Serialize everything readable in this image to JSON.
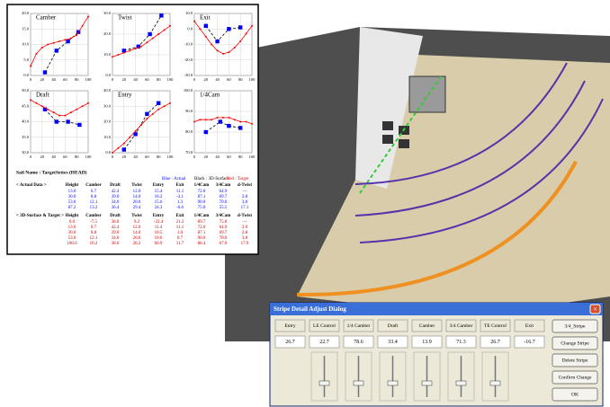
{
  "chart_data": [
    {
      "type": "line",
      "title": "Camber",
      "xlim": [
        0,
        100
      ],
      "xticks": [
        0,
        20,
        40,
        60,
        80,
        100
      ],
      "ylim": [
        0,
        20
      ],
      "yticks": [
        {
          "value": 0,
          "label": "0.0"
        },
        {
          "value": 5,
          "label": "5.0"
        },
        {
          "value": 10,
          "label": "10.0"
        },
        {
          "value": 15,
          "label": "15.0"
        },
        {
          "value": 20,
          "label": "20.0"
        }
      ],
      "grid": true,
      "series": [
        {
          "color": "#0000ff",
          "line_color": "#000000",
          "line_style": "dashed",
          "marker": "square",
          "x": [
            25,
            45,
            65,
            83
          ],
          "values": [
            1,
            8,
            11,
            14
          ]
        },
        {
          "color": "#ff0000",
          "line_color": "#ff0000",
          "line_style": "solid",
          "marker": "dot",
          "x": [
            0,
            10,
            20,
            30,
            40,
            50,
            60,
            70,
            80,
            90,
            100
          ],
          "values": [
            3,
            7,
            9,
            10,
            10.5,
            11,
            11.5,
            12,
            13,
            16,
            19
          ]
        }
      ]
    },
    {
      "type": "line",
      "title": "Twist",
      "xlim": [
        0,
        100
      ],
      "xticks": [
        0,
        20,
        40,
        60,
        80,
        100
      ],
      "ylim": [
        0,
        30
      ],
      "yticks": [
        {
          "value": 0,
          "label": "0.0"
        },
        {
          "value": 10,
          "label": "10.0"
        },
        {
          "value": 20,
          "label": "20.0"
        },
        {
          "value": 30,
          "label": "30.0"
        }
      ],
      "grid": true,
      "series": [
        {
          "color": "#0000ff",
          "line_color": "#000000",
          "line_style": "dashed",
          "marker": "square",
          "x": [
            20,
            45,
            65,
            85
          ],
          "values": [
            12,
            14,
            20,
            29
          ]
        },
        {
          "color": "#ff0000",
          "line_color": "#ff0000",
          "line_style": "solid",
          "marker": "dot",
          "x": [
            0,
            10,
            20,
            30,
            40,
            50,
            60,
            70,
            80,
            90,
            100
          ],
          "values": [
            9,
            10,
            11,
            12,
            13,
            14,
            16,
            18,
            20,
            22,
            24
          ]
        }
      ]
    },
    {
      "type": "line",
      "title": "Exit",
      "xlim": [
        0,
        100
      ],
      "xticks": [
        0,
        20,
        40,
        60,
        80,
        100
      ],
      "ylim": [
        -30,
        10
      ],
      "yticks": [
        {
          "value": -30,
          "label": "-30.0"
        },
        {
          "value": -20,
          "label": "-20.0"
        },
        {
          "value": -10,
          "label": "-10.0"
        },
        {
          "value": 0,
          "label": "0.0"
        },
        {
          "value": 10,
          "label": "10.0"
        }
      ],
      "grid": true,
      "series": [
        {
          "color": "#0000ff",
          "line_color": "#000000",
          "line_style": "dashed",
          "marker": "square",
          "x": [
            20,
            40,
            60,
            80
          ],
          "values": [
            2,
            -8,
            0,
            1
          ]
        },
        {
          "color": "#ff0000",
          "line_color": "#ff0000",
          "line_style": "solid",
          "marker": "dot",
          "x": [
            0,
            10,
            20,
            30,
            40,
            50,
            60,
            70,
            80,
            90,
            100
          ],
          "values": [
            5,
            0,
            -5,
            -10,
            -14,
            -16,
            -15,
            -12,
            -8,
            -3,
            2
          ]
        }
      ]
    },
    {
      "type": "line",
      "title": "Draft",
      "xlim": [
        0,
        100
      ],
      "xticks": [
        0,
        20,
        40,
        60,
        80,
        100
      ],
      "ylim": [
        30,
        50
      ],
      "yticks": [
        {
          "value": 30,
          "label": "30.0"
        },
        {
          "value": 35,
          "label": "35.0"
        },
        {
          "value": 40,
          "label": "40.0"
        },
        {
          "value": 45,
          "label": "45.0"
        },
        {
          "value": 50,
          "label": "50.0"
        }
      ],
      "grid": true,
      "series": [
        {
          "color": "#0000ff",
          "line_color": "#000000",
          "line_style": "dashed",
          "marker": "square",
          "x": [
            25,
            45,
            65,
            85
          ],
          "values": [
            44,
            40,
            40,
            39
          ]
        },
        {
          "color": "#ff0000",
          "line_color": "#ff0000",
          "line_style": "solid",
          "marker": "dot",
          "x": [
            0,
            10,
            20,
            30,
            40,
            50,
            60,
            70,
            80,
            90,
            100
          ],
          "values": [
            47,
            46,
            45,
            44,
            43,
            42,
            42,
            43,
            44,
            45,
            46
          ]
        }
      ]
    },
    {
      "type": "line",
      "title": "Entry",
      "xlim": [
        0,
        100
      ],
      "xticks": [
        0,
        20,
        40,
        60,
        80,
        100
      ],
      "ylim": [
        0,
        40
      ],
      "yticks": [
        {
          "value": 0,
          "label": "0.0"
        },
        {
          "value": 10,
          "label": "10.0"
        },
        {
          "value": 20,
          "label": "20.0"
        },
        {
          "value": 30,
          "label": "30.0"
        },
        {
          "value": 40,
          "label": "40.0"
        }
      ],
      "grid": true,
      "series": [
        {
          "color": "#0000ff",
          "line_color": "#000000",
          "line_style": "dashed",
          "marker": "square",
          "x": [
            20,
            40,
            60,
            80
          ],
          "values": [
            2,
            12,
            25,
            32
          ]
        },
        {
          "color": "#ff0000",
          "line_color": "#ff0000",
          "line_style": "solid",
          "marker": "dot",
          "x": [
            0,
            10,
            20,
            30,
            40,
            50,
            60,
            70,
            80,
            90,
            100
          ],
          "values": [
            0,
            3,
            6,
            10,
            14,
            18,
            22,
            25,
            28,
            30,
            32
          ]
        }
      ]
    },
    {
      "type": "line",
      "title": "1/4Cam",
      "xlim": [
        0,
        100
      ],
      "xticks": [
        0,
        20,
        40,
        60,
        80,
        100
      ],
      "ylim": [
        70,
        100
      ],
      "yticks": [
        {
          "value": 70,
          "label": "70.0"
        },
        {
          "value": 80,
          "label": "80.0"
        },
        {
          "value": 90,
          "label": "90.0"
        },
        {
          "value": 100,
          "label": "100.0"
        }
      ],
      "grid": true,
      "series": [
        {
          "color": "#0000ff",
          "line_color": "#000000",
          "line_style": "dashed",
          "marker": "square",
          "x": [
            20,
            45,
            60,
            80
          ],
          "values": [
            80,
            85,
            83,
            82
          ]
        },
        {
          "color": "#ff0000",
          "line_color": "#ff0000",
          "line_style": "solid",
          "marker": "dot",
          "x": [
            0,
            10,
            20,
            30,
            40,
            50,
            60,
            70,
            80,
            90,
            100
          ],
          "values": [
            85,
            86,
            86,
            86,
            87,
            87,
            87,
            86,
            85,
            85,
            84
          ]
        }
      ]
    }
  ],
  "table": {
    "sail_name": "Sail Name : TargetSettes (HEAD)",
    "legend": [
      {
        "text": "Blue : Actual",
        "color": "#0000ff"
      },
      {
        "text": "Black : 3D-Surface",
        "color": "#000000"
      },
      {
        "text": "Red : Target",
        "color": "#ff0000"
      }
    ],
    "actual_label": "< Actual Data >",
    "surface_label": "< 3D-Surface & Target >",
    "columns": [
      "Height",
      "Camber",
      "Draft",
      "Twist",
      "Entry",
      "Exit",
      "1/4Cam",
      "3/4Cam",
      "d-Twist"
    ],
    "actual_color": "#0000ff",
    "surface_color": "#cc0000",
    "actual_rows": [
      [
        "13.0",
        "6.7",
        "42.4",
        "12.0",
        "15.4",
        "11.1",
        "72.0",
        "64.9",
        "—"
      ],
      [
        "30.0",
        "8.8",
        "39.0",
        "14.0",
        "16.2",
        "-3.1",
        "87.1",
        "69.7",
        "2.8"
      ],
      [
        "53.0",
        "12.1",
        "34.0",
        "20.0",
        "15.6",
        "1.3",
        "90.0",
        "70.0",
        "3.8"
      ],
      [
        "87.2",
        "13.2",
        "36.4",
        "29.4",
        "24.3",
        "-6.6",
        "75.0",
        "55.5",
        "17.1"
      ]
    ],
    "surface_rows": [
      [
        "0.0",
        "-7.5",
        "38.0",
        "9.2",
        "-22.4",
        "21.2",
        "89.7",
        "75.8",
        "—"
      ],
      [
        "13.0",
        "0.7",
        "42.4",
        "12.0",
        "11.4",
        "11.1",
        "72.0",
        "64.9",
        "2.0"
      ],
      [
        "30.0",
        "8.8",
        "39.0",
        "14.0",
        "10.5",
        "1.0",
        "87.1",
        "69.7",
        "2.8"
      ],
      [
        "53.0",
        "12.1",
        "34.0",
        "20.0",
        "10.6",
        "0.7",
        "90.0",
        "70.0",
        "3.8"
      ],
      [
        "100.0",
        "10.2",
        "38.0",
        "28.2",
        "60.9",
        "11.7",
        "88.4",
        "67.0",
        "17.9"
      ]
    ]
  },
  "dialog": {
    "title": "Stripe Detail Adjust Dialog",
    "fields": [
      {
        "label": "Entry",
        "value": "26.7"
      },
      {
        "label": "LE Control",
        "value": "22.7"
      },
      {
        "label": "1/4 Camber",
        "value": "78.6"
      },
      {
        "label": "Draft",
        "value": "33.4"
      },
      {
        "label": "Camber",
        "value": "13.9"
      },
      {
        "label": "3/4 Camber",
        "value": "71.3"
      },
      {
        "label": "TE Control",
        "value": "26.7"
      },
      {
        "label": "Exit",
        "value": "-16.7"
      }
    ],
    "buttons": [
      "3/4_Stripe",
      "Change Stripe",
      "Delete Stripe",
      "Confirm Change",
      "OK"
    ]
  }
}
